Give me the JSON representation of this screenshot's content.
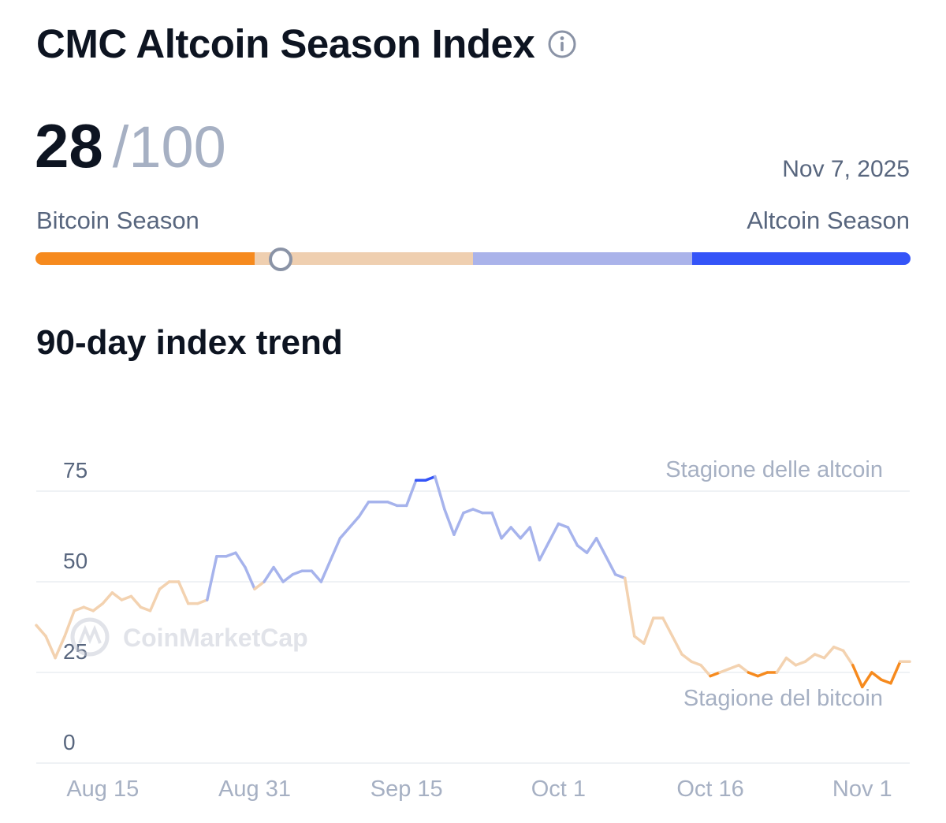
{
  "header": {
    "title": "CMC Altcoin Season Index",
    "info_icon": "info-circle-icon"
  },
  "index": {
    "value": "28",
    "max": "/100",
    "value_number": 28,
    "date": "Nov 7, 2025"
  },
  "scale": {
    "left_label": "Bitcoin Season",
    "right_label": "Altcoin Season",
    "segment_colors": [
      "#f68a1e",
      "#efcfb0",
      "#aab3ea",
      "#3454f8"
    ]
  },
  "colors": {
    "text": "#0d1421",
    "muted": "#58667e",
    "light_muted": "#a6b0c3",
    "grid": "#eff2f5",
    "bitcoin_season": "#f68a1e",
    "bitcoin_light": "#f3d2b0",
    "altcoin_light": "#a6b3ec",
    "altcoin_season": "#3454f8"
  },
  "chart_data": {
    "type": "line",
    "title": "90-day index trend",
    "watermark": "CoinMarketCap",
    "ylim": [
      0,
      75
    ],
    "yticks": [
      "75",
      "50",
      "25",
      "0"
    ],
    "ytick_values": [
      75,
      50,
      25,
      0
    ],
    "xtick_labels": [
      "Aug 15",
      "Aug 31",
      "Sep 15",
      "Oct 1",
      "Oct 16",
      "Nov 1"
    ],
    "xtick_index": [
      7,
      23,
      39,
      55,
      71,
      87
    ],
    "thresholds": {
      "altcoin_season": 75,
      "bitcoin_season": 25,
      "altcoin_label": "Stagione delle altcoin",
      "bitcoin_label": "Stagione del bitcoin"
    },
    "series": [
      {
        "name": "Altcoin Season Index",
        "values": [
          38,
          35,
          29,
          35,
          42,
          43,
          42,
          44,
          47,
          45,
          46,
          43,
          42,
          48,
          50,
          50,
          44,
          44,
          45,
          57,
          57,
          58,
          54,
          48,
          50,
          54,
          50,
          52,
          53,
          53,
          50,
          56,
          62,
          65,
          68,
          72,
          72,
          72,
          71,
          71,
          78,
          78,
          79,
          70,
          63,
          69,
          70,
          69,
          69,
          62,
          65,
          62,
          65,
          56,
          61,
          66,
          65,
          60,
          58,
          62,
          57,
          52,
          51,
          35,
          33,
          40,
          40,
          35,
          30,
          28,
          27,
          24,
          25,
          26,
          27,
          25,
          24,
          25,
          25,
          29,
          27,
          28,
          30,
          29,
          32,
          31,
          27,
          21,
          25,
          23,
          22,
          28,
          28
        ]
      }
    ]
  }
}
